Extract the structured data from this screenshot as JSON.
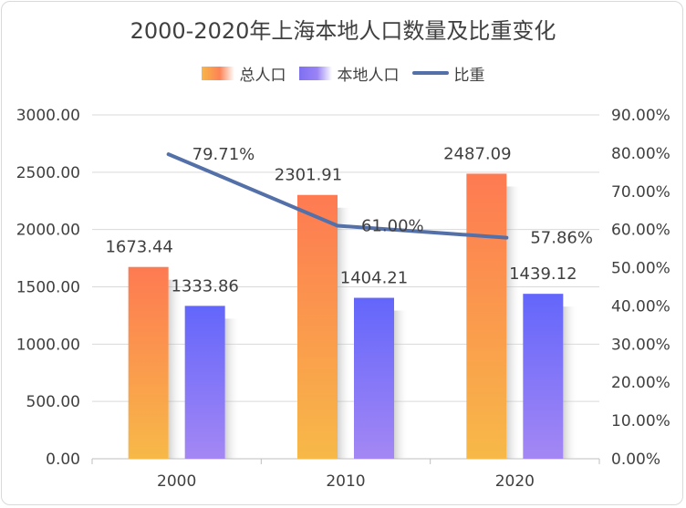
{
  "colors": {
    "total_top": "#fe7a52",
    "total_bottom": "#f7b948",
    "local_top": "#6366fb",
    "local_bottom": "#a487f4",
    "line": "#5470a9",
    "grid": "#d9d9d9",
    "text": "#404040"
  },
  "chart_data": {
    "type": "bar",
    "title": "2000-2020年上海本地人口数量及比重变化",
    "categories": [
      "2000",
      "2010",
      "2020"
    ],
    "series": [
      {
        "name": "总人口",
        "type": "bar",
        "axis": "left",
        "values": [
          1673.44,
          2301.91,
          2487.09
        ],
        "labels": [
          "1673.44",
          "2301.91",
          "2487.09"
        ]
      },
      {
        "name": "本地人口",
        "type": "bar",
        "axis": "left",
        "values": [
          1333.86,
          1404.21,
          1439.12
        ],
        "labels": [
          "1333.86",
          "1404.21",
          "1439.12"
        ]
      },
      {
        "name": "比重",
        "type": "line",
        "axis": "right",
        "values": [
          79.71,
          61.0,
          57.86
        ],
        "labels": [
          "79.71%",
          "61.00%",
          "57.86%"
        ]
      }
    ],
    "left_axis": {
      "ylim": [
        0,
        3000
      ],
      "ticks": [
        "0.00",
        "500.00",
        "1000.00",
        "1500.00",
        "2000.00",
        "2500.00",
        "3000.00"
      ]
    },
    "right_axis": {
      "ylim": [
        0,
        90
      ],
      "ticks": [
        "0.00%",
        "10.00%",
        "20.00%",
        "30.00%",
        "40.00%",
        "50.00%",
        "60.00%",
        "70.00%",
        "80.00%",
        "90.00%"
      ]
    },
    "legend_position": "top-center",
    "grid": true
  }
}
